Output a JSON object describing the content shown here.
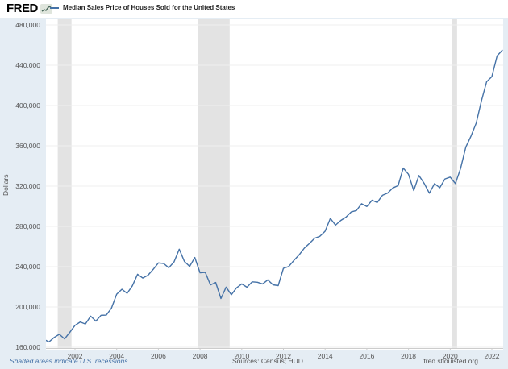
{
  "header": {
    "logo_text": "FRED",
    "logo_icon": "fred-sparkline-icon"
  },
  "footer": {
    "recession_note": "Shaded areas indicate U.S. recessions.",
    "sources": "Sources: Census; HUD",
    "site": "fred.stlouisfed.org"
  },
  "colors": {
    "page_background": "#e5edf4",
    "plot_background": "#ffffff",
    "gridline": "#efefef",
    "axis_line": "#cccccc",
    "tick_text": "#555555",
    "line": "#4572a7",
    "recession_band": "#e3e3e3",
    "note_blue": "#4572a7"
  },
  "chart_data": {
    "type": "line",
    "title": "Median Sales Price of Houses Sold for the United States",
    "ylabel": "Dollars",
    "xlabel": "",
    "x_unit": "quarterly",
    "x_start": 2000.5,
    "x_step": 0.25,
    "values": [
      168000,
      165300,
      169800,
      172900,
      168300,
      174700,
      181800,
      185100,
      183100,
      190900,
      186000,
      191800,
      191900,
      198800,
      212700,
      217600,
      213500,
      221000,
      232500,
      228700,
      231500,
      237300,
      243800,
      243200,
      239000,
      244700,
      257400,
      245200,
      240300,
      249100,
      233900,
      234300,
      221900,
      224300,
      208400,
      219700,
      212200,
      219000,
      222900,
      219600,
      225000,
      224600,
      222900,
      226900,
      222000,
      221200,
      238400,
      240200,
      246200,
      251700,
      258400,
      263100,
      268300,
      270200,
      275200,
      288000,
      281300,
      285900,
      289200,
      294300,
      295800,
      302500,
      299800,
      306000,
      303800,
      310900,
      313100,
      318200,
      320500,
      337900,
      331800,
      315600,
      330600,
      322800,
      313000,
      322500,
      318400,
      327100,
      329000,
      322600,
      337500,
      358700,
      369800,
      382600,
      404700,
      423600,
      428700,
      449300,
      454900
    ],
    "yticks": [
      160000,
      200000,
      240000,
      280000,
      320000,
      360000,
      400000,
      440000,
      480000
    ],
    "xticks": [
      2002,
      2004,
      2006,
      2008,
      2010,
      2012,
      2014,
      2016,
      2018,
      2020,
      2022
    ],
    "ylim": [
      160000,
      480000
    ],
    "xlim": [
      2000.6,
      2022.55
    ],
    "grid": "horizontal",
    "legend_position": "top-left-header",
    "recessions": [
      [
        2001.17,
        2001.83
      ],
      [
        2007.92,
        2009.42
      ],
      [
        2020.08,
        2020.33
      ]
    ]
  }
}
